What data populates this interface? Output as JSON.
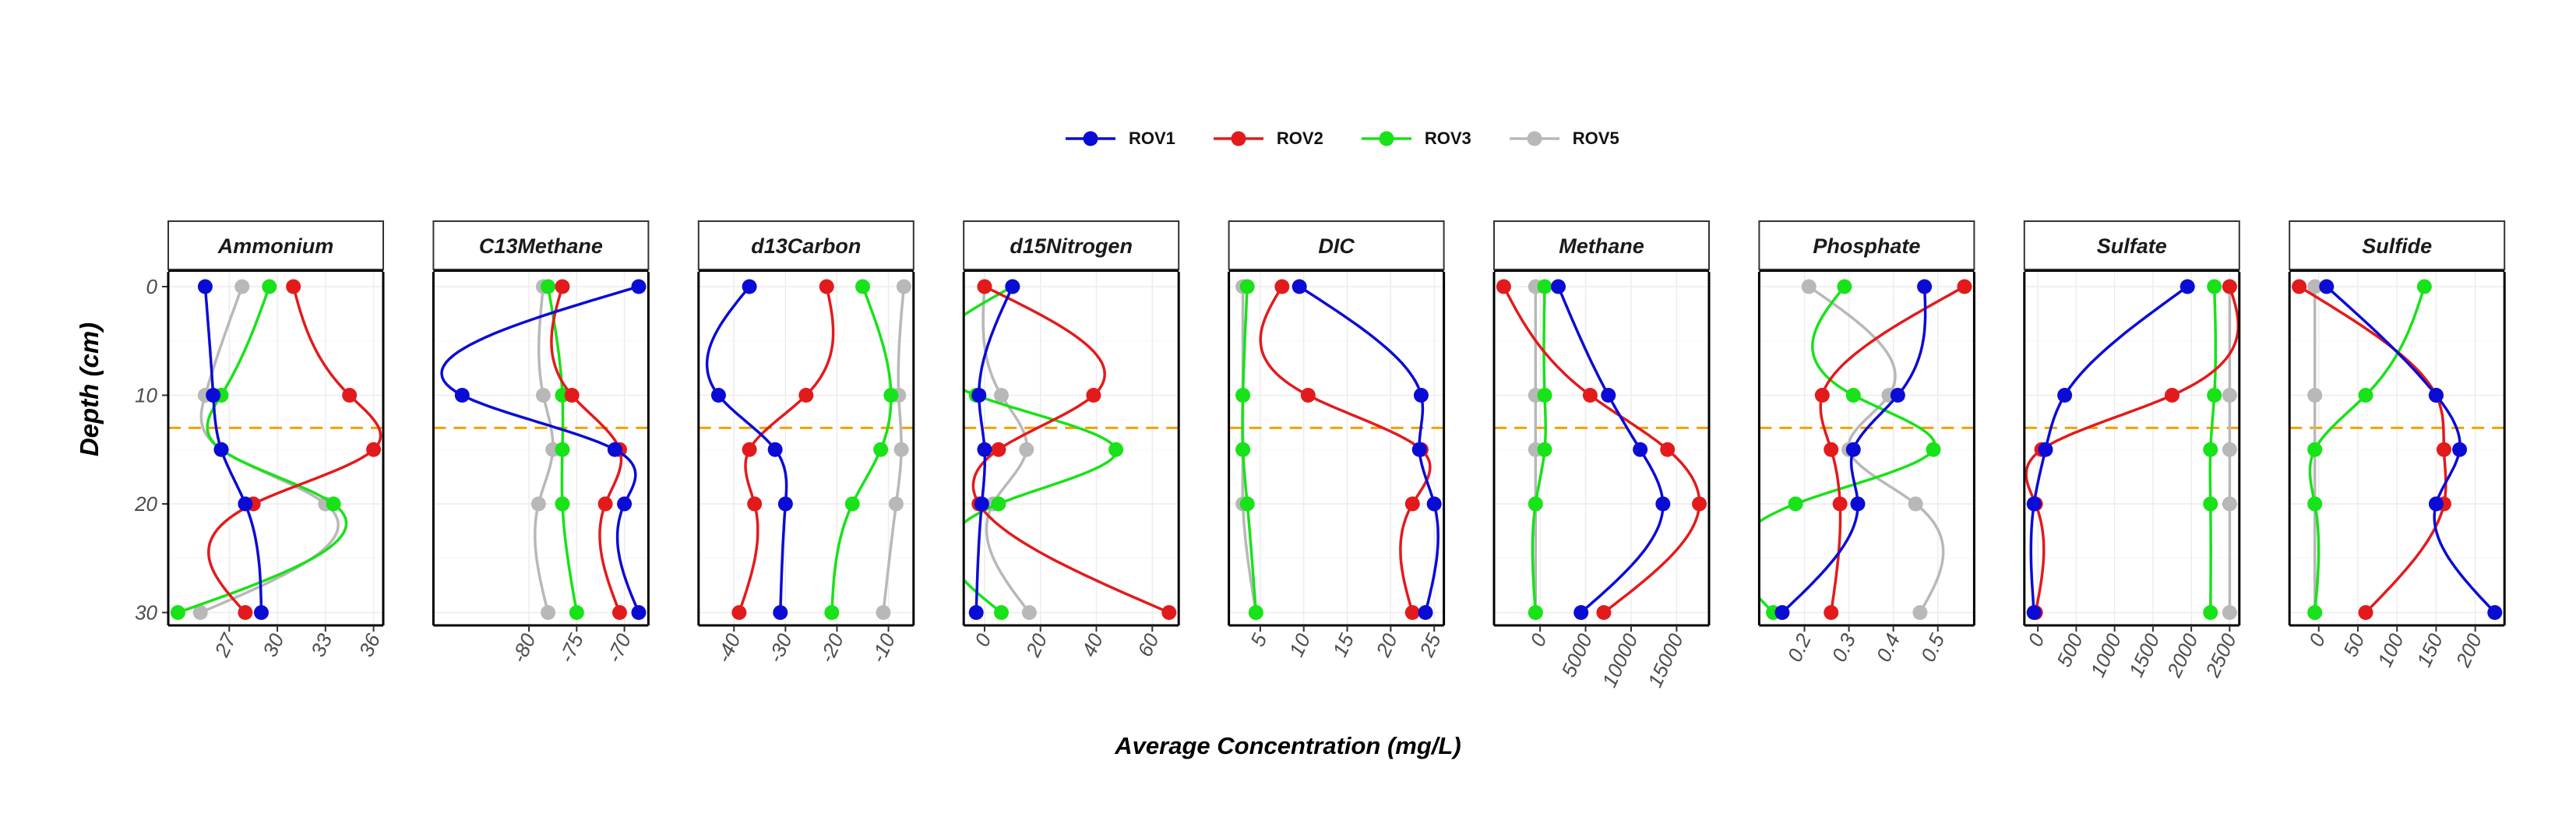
{
  "chart_data": {
    "type": "line",
    "ylabel": "Depth (cm)",
    "xlabel": "Average Concentration (mg/L)",
    "y_reversed": true,
    "ylim": [
      0,
      31
    ],
    "yticks": [
      0,
      10,
      20,
      30
    ],
    "depths": [
      0,
      10,
      15,
      20,
      30
    ],
    "reference_line": {
      "y": 13,
      "style": "dashed",
      "color": "#F2A100"
    },
    "grid": "on",
    "legend_position": "top",
    "series": [
      {
        "name": "ROV1",
        "color": "#0B0BD6"
      },
      {
        "name": "ROV2",
        "color": "#E31A1C"
      },
      {
        "name": "ROV3",
        "color": "#18E218"
      },
      {
        "name": "ROV5",
        "color": "#B8B8B8"
      }
    ],
    "panels": [
      {
        "title": "Ammonium",
        "xlim": [
          23.8,
          36
        ],
        "xticks": [
          27,
          30,
          33,
          36
        ],
        "values": {
          "ROV1": [
            25.5,
            26,
            26.5,
            28,
            29
          ],
          "ROV2": [
            31,
            34.5,
            36,
            28.5,
            28
          ],
          "ROV3": [
            29.5,
            26.5,
            26.5,
            33.5,
            23.8
          ],
          "ROV5": [
            27.8,
            25.5,
            26.5,
            33,
            25.2
          ]
        }
      },
      {
        "title": "C13Methane",
        "xlim": [
          -89,
          -68.5
        ],
        "xticks": [
          -80,
          -75,
          -70
        ],
        "values": {
          "ROV1": [
            -68.5,
            -87,
            -71,
            -70,
            -68.5
          ],
          "ROV2": [
            -76.5,
            -75.5,
            -70.5,
            -72,
            -70.5
          ],
          "ROV3": [
            -78,
            -76.5,
            -76.5,
            -76.5,
            -75
          ],
          "ROV5": [
            -78.5,
            -78.5,
            -77.5,
            -79,
            -78
          ]
        }
      },
      {
        "title": "d13Carbon",
        "xlim": [
          -45,
          -7
        ],
        "xticks": [
          -40,
          -30,
          -20,
          -10
        ],
        "values": {
          "ROV1": [
            -37,
            -43,
            -32,
            -30,
            -31
          ],
          "ROV2": [
            -22,
            -26,
            -37,
            -36,
            -39
          ],
          "ROV3": [
            -15,
            -9.5,
            -11.5,
            -17,
            -21
          ],
          "ROV5": [
            -7,
            -8,
            -7.5,
            -8.5,
            -11
          ]
        }
      },
      {
        "title": "d15Nitrogen",
        "xlim": [
          -4,
          66
        ],
        "xticks": [
          0,
          20,
          40,
          60
        ],
        "values": {
          "ROV1": [
            10,
            -2,
            0,
            -1,
            -3
          ],
          "ROV2": [
            0,
            39,
            5,
            -2,
            66
          ],
          "ROV3": [
            10,
            -3,
            47,
            5,
            6
          ],
          "ROV5": [
            0,
            6,
            15,
            3,
            16
          ]
        }
      },
      {
        "title": "DIC",
        "xlim": [
          2.5,
          25
        ],
        "xticks": [
          5,
          10,
          15,
          20,
          25
        ],
        "values": {
          "ROV1": [
            9.5,
            23.5,
            23.3,
            25,
            24
          ],
          "ROV2": [
            7.5,
            10.5,
            23.5,
            22.5,
            22.5
          ],
          "ROV3": [
            3.5,
            3,
            3,
            3.5,
            4.5
          ],
          "ROV5": [
            3,
            3,
            3,
            3,
            4.5
          ]
        }
      },
      {
        "title": "Methane",
        "xlim": [
          -4000,
          17500
        ],
        "xticks": [
          0,
          5000,
          10000,
          15000
        ],
        "values": {
          "ROV1": [
            2000,
            7500,
            11000,
            13500,
            4500
          ],
          "ROV2": [
            -4000,
            5500,
            14000,
            17500,
            7000
          ],
          "ROV3": [
            500,
            500,
            500,
            -500,
            -500
          ],
          "ROV5": [
            -500,
            -500,
            -500,
            -500,
            -500
          ]
        }
      },
      {
        "title": "Phosphate",
        "xlim": [
          0.12,
          0.56
        ],
        "xticks": [
          0.2,
          0.3,
          0.4,
          0.5
        ],
        "values": {
          "ROV1": [
            0.47,
            0.41,
            0.31,
            0.32,
            0.15
          ],
          "ROV2": [
            0.56,
            0.24,
            0.26,
            0.28,
            0.26
          ],
          "ROV3": [
            0.29,
            0.31,
            0.49,
            0.18,
            0.13
          ],
          "ROV5": [
            0.21,
            0.39,
            0.3,
            0.45,
            0.46
          ]
        }
      },
      {
        "title": "Sulfate",
        "xlim": [
          -50,
          2500
        ],
        "xticks": [
          0,
          500,
          1000,
          1500,
          2000,
          2500
        ],
        "values": {
          "ROV1": [
            1950,
            350,
            100,
            -50,
            -50
          ],
          "ROV2": [
            2500,
            1750,
            50,
            -30,
            -30
          ],
          "ROV3": [
            2300,
            2300,
            2250,
            2250,
            2250
          ],
          "ROV5": [
            2500,
            2500,
            2500,
            2500,
            2500
          ]
        }
      },
      {
        "title": "Sulfide",
        "xlim": [
          -25,
          225
        ],
        "xticks": [
          0,
          50,
          100,
          150,
          200
        ],
        "values": {
          "ROV1": [
            10,
            150,
            180,
            150,
            225
          ],
          "ROV2": [
            -25,
            150,
            160,
            160,
            60
          ],
          "ROV3": [
            135,
            60,
            -5,
            -5,
            -5
          ],
          "ROV5": [
            -5,
            -5,
            -5,
            -5,
            -5
          ]
        }
      }
    ]
  }
}
